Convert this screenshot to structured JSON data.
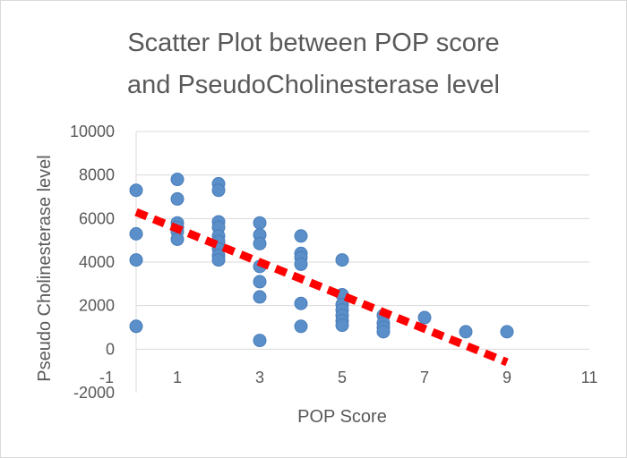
{
  "chart_data": {
    "type": "scatter",
    "title_lines": [
      "Scatter Plot between POP score",
      "and PseudoCholinesterase level"
    ],
    "xlabel": "POP Score",
    "ylabel": "Pseudo Cholinesterase level",
    "xlim": [
      -1,
      11
    ],
    "ylim": [
      -2000,
      10000
    ],
    "x_ticks": [
      -1,
      1,
      3,
      5,
      7,
      9,
      11
    ],
    "y_ticks": [
      -2000,
      0,
      2000,
      4000,
      6000,
      8000,
      10000
    ],
    "grid": true,
    "colors": {
      "points": "#5b8fc9",
      "trendline": "#ff0000",
      "text": "#595959",
      "grid": "#d9d9d9"
    },
    "series": [
      {
        "points": [
          [
            0,
            7300
          ],
          [
            0,
            5300
          ],
          [
            0,
            4100
          ],
          [
            0,
            1050
          ],
          [
            1,
            7800
          ],
          [
            1,
            6900
          ],
          [
            1,
            5800
          ],
          [
            1,
            5600
          ],
          [
            1,
            5400
          ],
          [
            1,
            5050
          ],
          [
            2,
            7600
          ],
          [
            2,
            7300
          ],
          [
            2,
            5850
          ],
          [
            2,
            5600
          ],
          [
            2,
            5200
          ],
          [
            2,
            4950
          ],
          [
            2,
            4600
          ],
          [
            2,
            4300
          ],
          [
            2,
            4100
          ],
          [
            3,
            5800
          ],
          [
            3,
            5250
          ],
          [
            3,
            4850
          ],
          [
            3,
            3800
          ],
          [
            3,
            3100
          ],
          [
            3,
            2400
          ],
          [
            3,
            400
          ],
          [
            4,
            5200
          ],
          [
            4,
            4400
          ],
          [
            4,
            4200
          ],
          [
            4,
            3900
          ],
          [
            4,
            2100
          ],
          [
            4,
            1050
          ],
          [
            5,
            4100
          ],
          [
            5,
            2500
          ],
          [
            5,
            2050
          ],
          [
            5,
            1800
          ],
          [
            5,
            1550
          ],
          [
            5,
            1300
          ],
          [
            5,
            1100
          ],
          [
            6,
            1550
          ],
          [
            6,
            1200
          ],
          [
            6,
            1000
          ],
          [
            6,
            800
          ],
          [
            7,
            1450
          ],
          [
            8,
            800
          ],
          [
            9,
            800
          ]
        ]
      }
    ],
    "trendline": {
      "type": "linear",
      "x": [
        0,
        9
      ],
      "y": [
        6300,
        -600
      ]
    }
  }
}
